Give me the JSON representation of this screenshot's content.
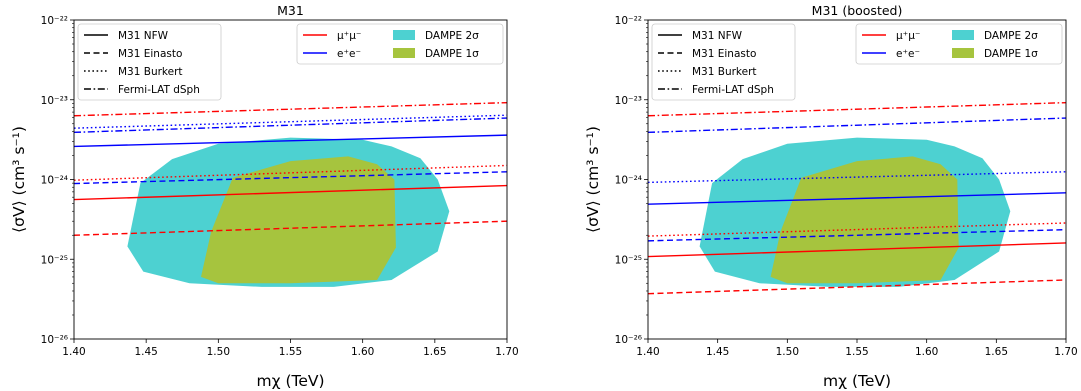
{
  "chart_data": [
    {
      "type": "line",
      "title": "M31",
      "xlabel": "mχ (TeV)",
      "ylabel": "⟨σV⟩ (cm³ s⁻¹)",
      "xlim": [
        1.4,
        1.7
      ],
      "ylim": [
        1e-26,
        1e-22
      ],
      "yscale": "log",
      "grid": false,
      "x_ticks": [
        "1.40",
        "1.45",
        "1.50",
        "1.55",
        "1.60",
        "1.65",
        "1.70"
      ],
      "y_ticks": [
        "10⁻²⁶",
        "10⁻²⁵",
        "10⁻²⁴",
        "10⁻²³",
        "10⁻²²"
      ],
      "legend_left": [
        "M31 NFW",
        "M31 Einasto",
        "M31 Burkert",
        "Fermi-LAT dSph"
      ],
      "legend_mid": [
        "μ⁺μ⁻",
        "e⁺e⁻"
      ],
      "legend_right": [
        "DAMPE 2σ",
        "DAMPE 1σ"
      ],
      "series": [
        {
          "name": "Fermi-LAT dSph",
          "channel": "μ⁺μ⁻",
          "style": "dashdot",
          "color": "#ff0000",
          "x": [
            1.4,
            1.7
          ],
          "y": [
            6.3e-24,
            9.2e-24
          ]
        },
        {
          "name": "Fermi-LAT dSph",
          "channel": "e⁺e⁻",
          "style": "dashdot",
          "color": "#0000ff",
          "x": [
            1.4,
            1.7
          ],
          "y": [
            3.9e-24,
            5.9e-24
          ]
        },
        {
          "name": "M31 Burkert",
          "channel": "μ⁺μ⁻",
          "style": "dotted",
          "color": "#ff0000",
          "x": [
            1.4,
            1.7
          ],
          "y": [
            9.8e-25,
            1.5e-24
          ]
        },
        {
          "name": "M31 Burkert",
          "channel": "e⁺e⁻",
          "style": "dotted",
          "color": "#0000ff",
          "x": [
            1.4,
            1.7
          ],
          "y": [
            4.4e-24,
            6.4e-24
          ]
        },
        {
          "name": "M31 NFW",
          "channel": "μ⁺μ⁻",
          "style": "solid",
          "color": "#ff0000",
          "x": [
            1.4,
            1.7
          ],
          "y": [
            5.6e-25,
            8.4e-25
          ]
        },
        {
          "name": "M31 NFW",
          "channel": "e⁺e⁻",
          "style": "solid",
          "color": "#0000ff",
          "x": [
            1.4,
            1.7
          ],
          "y": [
            2.6e-24,
            3.6e-24
          ]
        },
        {
          "name": "M31 Einasto",
          "channel": "μ⁺μ⁻",
          "style": "dashed",
          "color": "#ff0000",
          "x": [
            1.4,
            1.7
          ],
          "y": [
            2e-25,
            3e-25
          ]
        },
        {
          "name": "M31 Einasto",
          "channel": "e⁺e⁻",
          "style": "dashed",
          "color": "#0000ff",
          "x": [
            1.4,
            1.7
          ],
          "y": [
            8.9e-25,
            1.25e-24
          ]
        }
      ],
      "regions": [
        {
          "name": "DAMPE 2σ",
          "color": "#4dd1d1",
          "x": [
            1.437,
            1.446,
            1.468,
            1.5,
            1.55,
            1.6,
            1.62,
            1.64,
            1.652,
            1.66,
            1.652,
            1.62,
            1.58,
            1.53,
            1.48,
            1.448,
            1.437
          ],
          "y": [
            1.45e-25,
            9e-25,
            1.8e-24,
            2.8e-24,
            3.35e-24,
            3.15e-24,
            2.6e-24,
            1.85e-24,
            1e-24,
            4e-25,
            1.25e-25,
            5.5e-26,
            4.5e-26,
            4.5e-26,
            5e-26,
            7e-26,
            1.45e-25
          ]
        },
        {
          "name": "DAMPE 1σ",
          "color": "#a6c43e",
          "x": [
            1.488,
            1.495,
            1.51,
            1.55,
            1.59,
            1.61,
            1.622,
            1.623,
            1.61,
            1.55,
            1.5,
            1.488
          ],
          "y": [
            6e-26,
            2.2e-25,
            1.05e-24,
            1.7e-24,
            1.95e-24,
            1.55e-24,
            1e-24,
            1.4e-25,
            5.5e-26,
            5e-26,
            5e-26,
            6e-26
          ]
        }
      ]
    },
    {
      "type": "line",
      "title": "M31 (boosted)",
      "xlabel": "mχ (TeV)",
      "ylabel": "⟨σV⟩ (cm³ s⁻¹)",
      "xlim": [
        1.4,
        1.7
      ],
      "ylim": [
        1e-26,
        1e-22
      ],
      "yscale": "log",
      "grid": false,
      "x_ticks": [
        "1.40",
        "1.45",
        "1.50",
        "1.55",
        "1.60",
        "1.65",
        "1.70"
      ],
      "y_ticks": [
        "10⁻²⁶",
        "10⁻²⁵",
        "10⁻²⁴",
        "10⁻²³",
        "10⁻²²"
      ],
      "legend_left": [
        "M31 NFW",
        "M31 Einasto",
        "M31 Burkert",
        "Fermi-LAT dSph"
      ],
      "legend_mid": [
        "μ⁺μ⁻",
        "e⁺e⁻"
      ],
      "legend_right": [
        "DAMPE 2σ",
        "DAMPE 1σ"
      ],
      "series": [
        {
          "name": "Fermi-LAT dSph",
          "channel": "μ⁺μ⁻",
          "style": "dashdot",
          "color": "#ff0000",
          "x": [
            1.4,
            1.7
          ],
          "y": [
            6.3e-24,
            9.2e-24
          ]
        },
        {
          "name": "Fermi-LAT dSph",
          "channel": "e⁺e⁻",
          "style": "dashdot",
          "color": "#0000ff",
          "x": [
            1.4,
            1.7
          ],
          "y": [
            3.9e-24,
            5.9e-24
          ]
        },
        {
          "name": "M31 Burkert",
          "channel": "μ⁺μ⁻",
          "style": "dotted",
          "color": "#ff0000",
          "x": [
            1.4,
            1.7
          ],
          "y": [
            1.95e-25,
            2.85e-25
          ]
        },
        {
          "name": "M31 Burkert",
          "channel": "e⁺e⁻",
          "style": "dotted",
          "color": "#0000ff",
          "x": [
            1.4,
            1.7
          ],
          "y": [
            9.2e-25,
            1.25e-24
          ]
        },
        {
          "name": "M31 NFW",
          "channel": "μ⁺μ⁻",
          "style": "solid",
          "color": "#ff0000",
          "x": [
            1.4,
            1.7
          ],
          "y": [
            1.08e-25,
            1.6e-25
          ]
        },
        {
          "name": "M31 NFW",
          "channel": "e⁺e⁻",
          "style": "solid",
          "color": "#0000ff",
          "x": [
            1.4,
            1.7
          ],
          "y": [
            4.9e-25,
            6.8e-25
          ]
        },
        {
          "name": "M31 Einasto",
          "channel": "μ⁺μ⁻",
          "style": "dashed",
          "color": "#ff0000",
          "x": [
            1.4,
            1.7
          ],
          "y": [
            3.7e-26,
            5.5e-26
          ]
        },
        {
          "name": "M31 Einasto",
          "channel": "e⁺e⁻",
          "style": "dashed",
          "color": "#0000ff",
          "x": [
            1.4,
            1.7
          ],
          "y": [
            1.7e-25,
            2.35e-25
          ]
        }
      ],
      "regions": [
        {
          "name": "DAMPE 2σ",
          "color": "#4dd1d1",
          "x": [
            1.437,
            1.446,
            1.468,
            1.5,
            1.55,
            1.6,
            1.62,
            1.64,
            1.652,
            1.66,
            1.652,
            1.62,
            1.58,
            1.53,
            1.48,
            1.448,
            1.437
          ],
          "y": [
            1.45e-25,
            9e-25,
            1.8e-24,
            2.8e-24,
            3.35e-24,
            3.15e-24,
            2.6e-24,
            1.85e-24,
            1e-24,
            4e-25,
            1.25e-25,
            5.5e-26,
            4.5e-26,
            4.5e-26,
            5e-26,
            7e-26,
            1.45e-25
          ]
        },
        {
          "name": "DAMPE 1σ",
          "color": "#a6c43e",
          "x": [
            1.488,
            1.495,
            1.51,
            1.55,
            1.59,
            1.61,
            1.622,
            1.623,
            1.61,
            1.55,
            1.5,
            1.488
          ],
          "y": [
            6e-26,
            2.2e-25,
            1.05e-24,
            1.7e-24,
            1.95e-24,
            1.55e-24,
            1e-24,
            1.4e-25,
            5.5e-26,
            5e-26,
            5e-26,
            6e-26
          ]
        }
      ]
    }
  ]
}
